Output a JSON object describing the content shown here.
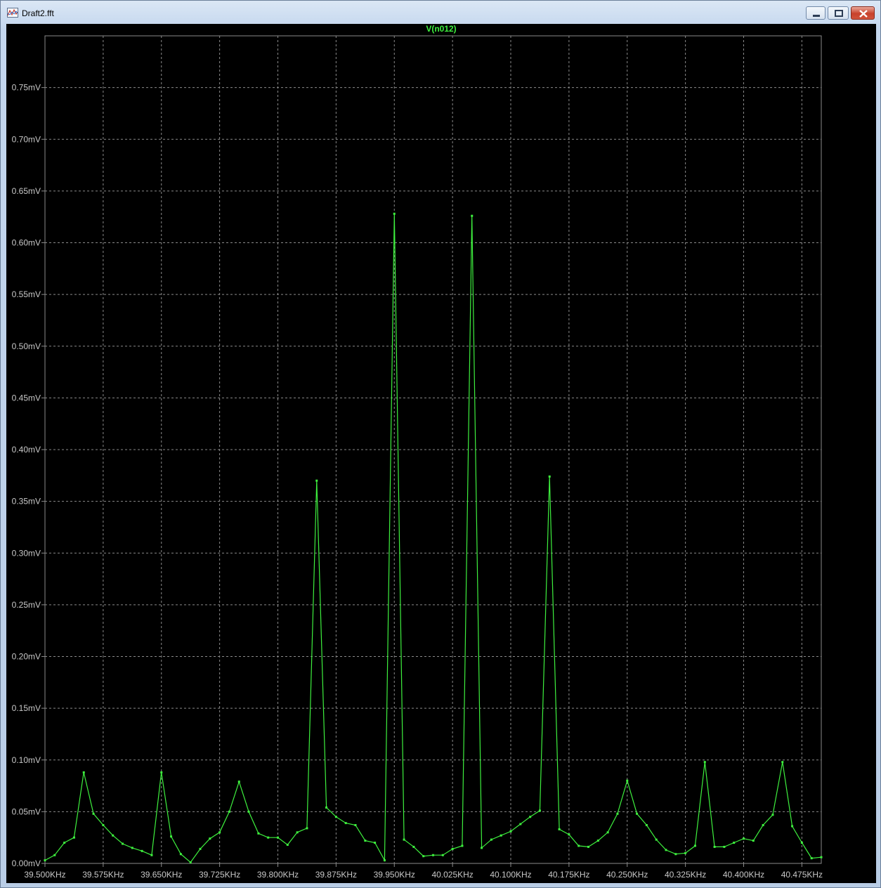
{
  "window": {
    "title": "Draft2.fft",
    "icon": "waveform-plot-icon",
    "controls": [
      "minimize-icon",
      "restore-icon",
      "close-icon"
    ]
  },
  "colors": {
    "background": "#000000",
    "trace": "#3ef03e",
    "grid": "#8a8a8a",
    "axis_text": "#c8c8c8"
  },
  "chart_data": {
    "type": "line",
    "title": "V(n012)",
    "xlabel": "",
    "ylabel": "",
    "x_unit": "KHz",
    "y_unit": "mV",
    "xlim": [
      39.5,
      40.5
    ],
    "ylim": [
      0.0,
      0.8
    ],
    "grid": true,
    "x_ticks": [
      39.5,
      39.575,
      39.65,
      39.725,
      39.8,
      39.875,
      39.95,
      40.025,
      40.1,
      40.175,
      40.25,
      40.325,
      40.4,
      40.475
    ],
    "x_tick_labels": [
      "39.500KHz",
      "39.575KHz",
      "39.650KHz",
      "39.725KHz",
      "39.800KHz",
      "39.875KHz",
      "39.950KHz",
      "40.025KHz",
      "40.100KHz",
      "40.175KHz",
      "40.250KHz",
      "40.325KHz",
      "40.400KHz",
      "40.475KHz"
    ],
    "y_ticks": [
      0.0,
      0.05,
      0.1,
      0.15,
      0.2,
      0.25,
      0.3,
      0.35,
      0.4,
      0.45,
      0.5,
      0.55,
      0.6,
      0.65,
      0.7,
      0.75
    ],
    "y_tick_labels": [
      "0.00mV",
      "0.05mV",
      "0.10mV",
      "0.15mV",
      "0.20mV",
      "0.25mV",
      "0.30mV",
      "0.35mV",
      "0.40mV",
      "0.45mV",
      "0.50mV",
      "0.55mV",
      "0.60mV",
      "0.65mV",
      "0.70mV",
      "0.75mV"
    ],
    "series": [
      {
        "name": "V(n012)",
        "points": [
          [
            39.5,
            0.003
          ],
          [
            39.5125,
            0.008
          ],
          [
            39.525,
            0.02
          ],
          [
            39.5375,
            0.025
          ],
          [
            39.55,
            0.088
          ],
          [
            39.5625,
            0.048
          ],
          [
            39.575,
            0.037
          ],
          [
            39.5875,
            0.027
          ],
          [
            39.6,
            0.019
          ],
          [
            39.6125,
            0.015
          ],
          [
            39.625,
            0.012
          ],
          [
            39.6375,
            0.008
          ],
          [
            39.65,
            0.088
          ],
          [
            39.6625,
            0.026
          ],
          [
            39.675,
            0.009
          ],
          [
            39.6875,
            0.001
          ],
          [
            39.7,
            0.014
          ],
          [
            39.7125,
            0.024
          ],
          [
            39.725,
            0.03
          ],
          [
            39.7375,
            0.05
          ],
          [
            39.75,
            0.079
          ],
          [
            39.7625,
            0.05
          ],
          [
            39.775,
            0.029
          ],
          [
            39.7875,
            0.025
          ],
          [
            39.8,
            0.025
          ],
          [
            39.8125,
            0.018
          ],
          [
            39.825,
            0.03
          ],
          [
            39.8375,
            0.034
          ],
          [
            39.85,
            0.37
          ],
          [
            39.8625,
            0.054
          ],
          [
            39.875,
            0.045
          ],
          [
            39.8875,
            0.039
          ],
          [
            39.9,
            0.037
          ],
          [
            39.9125,
            0.022
          ],
          [
            39.925,
            0.02
          ],
          [
            39.9375,
            0.003
          ],
          [
            39.95,
            0.628
          ],
          [
            39.9625,
            0.023
          ],
          [
            39.975,
            0.016
          ],
          [
            39.9875,
            0.007
          ],
          [
            40.0,
            0.008
          ],
          [
            40.0125,
            0.008
          ],
          [
            40.025,
            0.014
          ],
          [
            40.0375,
            0.017
          ],
          [
            40.05,
            0.626
          ],
          [
            40.0625,
            0.015
          ],
          [
            40.075,
            0.023
          ],
          [
            40.0875,
            0.027
          ],
          [
            40.1,
            0.031
          ],
          [
            40.1125,
            0.038
          ],
          [
            40.125,
            0.045
          ],
          [
            40.1375,
            0.051
          ],
          [
            40.15,
            0.374
          ],
          [
            40.1625,
            0.033
          ],
          [
            40.175,
            0.028
          ],
          [
            40.1875,
            0.017
          ],
          [
            40.2,
            0.016
          ],
          [
            40.2125,
            0.022
          ],
          [
            40.225,
            0.03
          ],
          [
            40.2375,
            0.048
          ],
          [
            40.25,
            0.08
          ],
          [
            40.2625,
            0.048
          ],
          [
            40.275,
            0.037
          ],
          [
            40.2875,
            0.023
          ],
          [
            40.3,
            0.013
          ],
          [
            40.3125,
            0.009
          ],
          [
            40.325,
            0.01
          ],
          [
            40.3375,
            0.017
          ],
          [
            40.35,
            0.098
          ],
          [
            40.3625,
            0.016
          ],
          [
            40.375,
            0.016
          ],
          [
            40.3875,
            0.02
          ],
          [
            40.4,
            0.024
          ],
          [
            40.4125,
            0.022
          ],
          [
            40.425,
            0.037
          ],
          [
            40.4375,
            0.047
          ],
          [
            40.45,
            0.098
          ],
          [
            40.4625,
            0.036
          ],
          [
            40.475,
            0.02
          ],
          [
            40.4875,
            0.005
          ],
          [
            40.5,
            0.006
          ]
        ]
      }
    ]
  }
}
